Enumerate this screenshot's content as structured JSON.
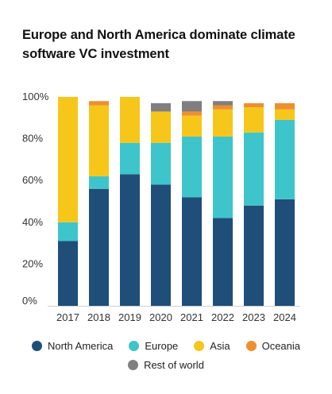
{
  "title_line1": "Europe and North America dominate climate",
  "title_line2": "software VC investment",
  "chart_data": {
    "type": "bar",
    "stacked": true,
    "title": "Europe and North America dominate climate software VC investment",
    "categories": [
      "2017",
      "2018",
      "2019",
      "2020",
      "2021",
      "2022",
      "2023",
      "2024"
    ],
    "ylim": [
      0,
      100
    ],
    "y_ticks": [
      "0%",
      "20%",
      "40%",
      "60%",
      "80%",
      "100%"
    ],
    "legend_position": "bottom",
    "series": [
      {
        "name": "North America",
        "color": "#1f4e79",
        "values": [
          31,
          56,
          63,
          58,
          52,
          42,
          48,
          51
        ]
      },
      {
        "name": "Europe",
        "color": "#3ec5cb",
        "values": [
          9,
          6,
          15,
          20,
          29,
          39,
          35,
          38
        ]
      },
      {
        "name": "Asia",
        "color": "#f6c61a",
        "values": [
          60,
          34,
          22,
          15,
          10,
          13,
          12,
          5
        ]
      },
      {
        "name": "Oceania",
        "color": "#ee8f2f",
        "values": [
          0,
          2,
          0,
          0,
          2,
          2,
          2,
          3
        ]
      },
      {
        "name": "Rest of world",
        "color": "#7f7f7f",
        "values": [
          0,
          0,
          0,
          4,
          5,
          2,
          0,
          0
        ]
      }
    ]
  }
}
